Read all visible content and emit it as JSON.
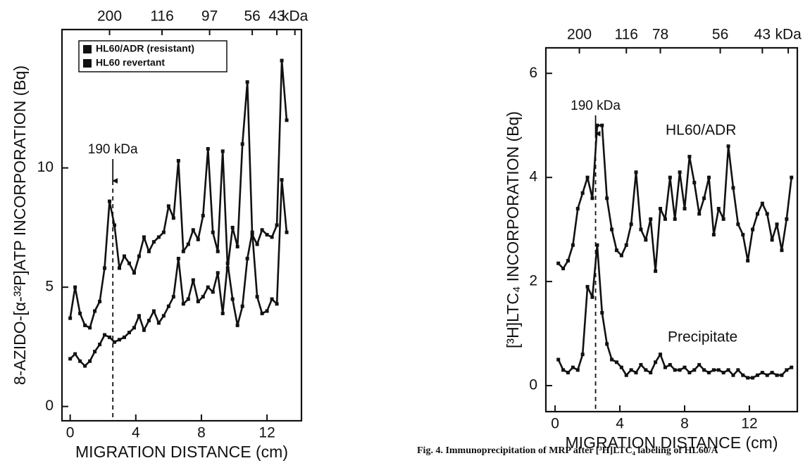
{
  "chart_data": [
    {
      "type": "line",
      "xlabel": "MIGRATION DISTANCE (cm)",
      "ylabel": "8-AZIDO-[α-³²P]ATP INCORPORATION (Bq)",
      "xlim": [
        -0.5,
        14.1
      ],
      "ylim": [
        -0.6,
        15.8
      ],
      "xticks": [
        0,
        4,
        8,
        12
      ],
      "yticks": [
        0,
        5,
        10
      ],
      "top_ticks": [
        {
          "value": 2.4,
          "label": "200"
        },
        {
          "value": 5.6,
          "label": "116"
        },
        {
          "value": 8.5,
          "label": "97"
        },
        {
          "value": 11.1,
          "label": "56"
        },
        {
          "value": 12.6,
          "label": "43"
        },
        {
          "value": 13.7,
          "label": "kDa"
        }
      ],
      "annotation": "190 kDa",
      "reference_x": 2.6,
      "legend": true,
      "x": [
        0,
        0.3,
        0.6,
        0.9,
        1.2,
        1.5,
        1.8,
        2.1,
        2.4,
        2.7,
        3,
        3.3,
        3.6,
        3.9,
        4.2,
        4.5,
        4.8,
        5.1,
        5.4,
        5.7,
        6,
        6.3,
        6.6,
        6.9,
        7.2,
        7.5,
        7.8,
        8.1,
        8.4,
        8.7,
        9,
        9.3,
        9.6,
        9.9,
        10.2,
        10.5,
        10.8,
        11.1,
        11.4,
        11.7,
        12,
        12.3,
        12.6,
        12.9,
        13.2
      ],
      "series": [
        {
          "name": "HL60/ADR (resistant)",
          "color": "#111111",
          "values": [
            3.7,
            5.0,
            3.9,
            3.4,
            3.3,
            4.0,
            4.4,
            5.8,
            8.6,
            7.6,
            5.8,
            6.3,
            6.0,
            5.6,
            6.3,
            7.1,
            6.5,
            6.9,
            7.1,
            7.3,
            8.4,
            7.9,
            10.3,
            6.5,
            6.8,
            7.4,
            7.0,
            8.0,
            10.8,
            7.3,
            6.5,
            10.7,
            5.8,
            7.5,
            6.7,
            11.0,
            13.6,
            7.2,
            6.8,
            7.4,
            7.2,
            7.1,
            7.6,
            14.5,
            12.0
          ]
        },
        {
          "name": "HL60 revertant",
          "color": "#111111",
          "values": [
            2.0,
            2.2,
            1.9,
            1.7,
            1.9,
            2.3,
            2.6,
            3.0,
            2.9,
            2.7,
            2.8,
            2.9,
            3.1,
            3.3,
            3.8,
            3.2,
            3.6,
            4.0,
            3.5,
            3.8,
            4.2,
            4.6,
            6.2,
            4.3,
            4.5,
            5.3,
            4.4,
            4.6,
            5.0,
            4.8,
            5.6,
            3.9,
            6.0,
            4.5,
            3.4,
            4.2,
            6.2,
            7.3,
            4.6,
            3.9,
            4.0,
            4.5,
            4.3,
            9.5,
            7.3
          ]
        }
      ]
    },
    {
      "type": "line",
      "xlabel": "MIGRATION DISTANCE (cm)",
      "ylabel": "[³H]LTC₄ INCORPORATION (Bq)",
      "xlim": [
        -0.57,
        14.96
      ],
      "ylim": [
        -0.5,
        6.49
      ],
      "xticks": [
        0,
        4,
        8,
        12
      ],
      "yticks": [
        0,
        2,
        4,
        6
      ],
      "top_ticks": [
        {
          "value": 1.5,
          "label": "200"
        },
        {
          "value": 4.4,
          "label": "116"
        },
        {
          "value": 6.5,
          "label": "78"
        },
        {
          "value": 10.2,
          "label": "56"
        },
        {
          "value": 12.8,
          "label": "43"
        },
        {
          "value": 14.4,
          "label": "kDa"
        }
      ],
      "annotation": "190 kDa",
      "reference_x": 2.5,
      "legend": false,
      "x": [
        0.2,
        0.5,
        0.8,
        1.1,
        1.4,
        1.7,
        2,
        2.3,
        2.6,
        2.9,
        3.2,
        3.5,
        3.8,
        4.1,
        4.4,
        4.7,
        5,
        5.3,
        5.6,
        5.9,
        6.2,
        6.5,
        6.8,
        7.1,
        7.4,
        7.7,
        8,
        8.3,
        8.6,
        8.9,
        9.2,
        9.5,
        9.8,
        10.1,
        10.4,
        10.7,
        11,
        11.3,
        11.6,
        11.9,
        12.2,
        12.5,
        12.8,
        13.1,
        13.4,
        13.7,
        14,
        14.3,
        14.6
      ],
      "series": [
        {
          "name": "HL60/ADR",
          "color": "#111111",
          "values": [
            2.35,
            2.25,
            2.4,
            2.7,
            3.4,
            3.7,
            4.0,
            3.6,
            5.0,
            5.0,
            3.6,
            3.0,
            2.6,
            2.5,
            2.7,
            3.1,
            4.1,
            3.0,
            2.8,
            3.2,
            2.2,
            3.4,
            3.2,
            4.0,
            3.2,
            4.1,
            3.4,
            4.4,
            3.9,
            3.3,
            3.6,
            4.0,
            2.9,
            3.4,
            3.2,
            4.6,
            3.8,
            3.1,
            2.9,
            2.4,
            3.0,
            3.3,
            3.5,
            3.3,
            2.8,
            3.1,
            2.6,
            3.2,
            4.0
          ]
        },
        {
          "name": "Precipitate",
          "color": "#111111",
          "values": [
            0.5,
            0.3,
            0.25,
            0.35,
            0.3,
            0.6,
            1.9,
            1.7,
            2.7,
            1.4,
            0.8,
            0.5,
            0.45,
            0.35,
            0.2,
            0.3,
            0.25,
            0.4,
            0.3,
            0.25,
            0.45,
            0.6,
            0.35,
            0.4,
            0.3,
            0.3,
            0.35,
            0.25,
            0.3,
            0.4,
            0.3,
            0.25,
            0.3,
            0.3,
            0.25,
            0.3,
            0.2,
            0.3,
            0.2,
            0.15,
            0.15,
            0.2,
            0.25,
            0.2,
            0.25,
            0.2,
            0.2,
            0.3,
            0.35
          ]
        }
      ]
    }
  ],
  "caption": "Fig. 4. Immunoprecipitation of MRP after [³H]LTC₄ labeling of HL60/A"
}
